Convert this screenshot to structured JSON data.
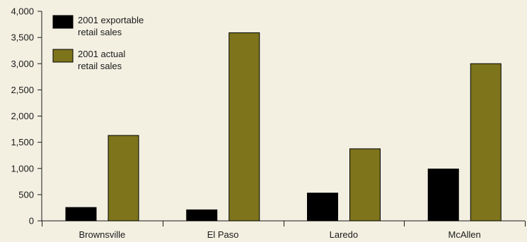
{
  "chart_data": {
    "type": "bar",
    "title": "",
    "xlabel": "",
    "ylabel": "",
    "categories": [
      "Brownsville",
      "El Paso",
      "Laredo",
      "McAllen"
    ],
    "series": [
      {
        "name": "2001 exportable retail sales",
        "name_lines": [
          "2001 exportable",
          "retail sales"
        ],
        "values": [
          255,
          210,
          530,
          990
        ],
        "color": "#000000"
      },
      {
        "name": "2001 actual retail sales",
        "name_lines": [
          "2001 actual",
          "retail sales"
        ],
        "values": [
          1630,
          3590,
          1375,
          3000
        ],
        "color": "#7d741c"
      }
    ],
    "ylim": [
      0,
      4000
    ],
    "yticks": [
      0,
      500,
      1000,
      1500,
      2000,
      2500,
      3000,
      3500,
      4000
    ],
    "ytick_labels": [
      "0",
      "500",
      "1,000",
      "1,500",
      "2,000",
      "2,500",
      "3,000",
      "3,500",
      "4,000"
    ],
    "grid": false,
    "legend_position": "top-left"
  }
}
